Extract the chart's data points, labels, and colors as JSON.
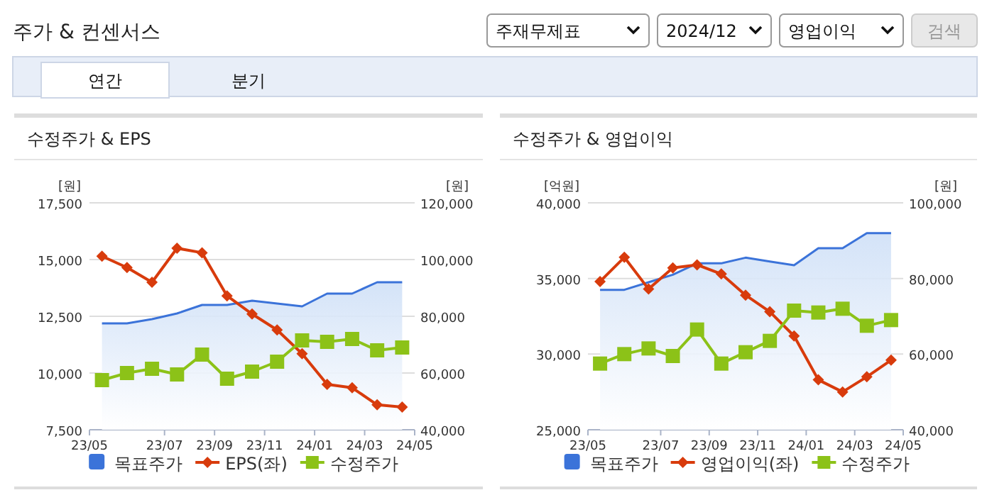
{
  "chart_data": [
    {
      "type": "line",
      "title": "수정주가 & EPS",
      "ylabel": "[원]",
      "y2label": "[원]",
      "annotations": [
        "주가 & 컨센서스",
        "주재무제표",
        "2024/12",
        "영업이익",
        "검색",
        "연간",
        "분기"
      ],
      "x": [
        "2023-05",
        "2023-06",
        "2023-07",
        "2023-08",
        "2023-09",
        "2023-10",
        "2023-11",
        "2023-12",
        "2024-01",
        "2024-02",
        "2024-03",
        "2024-04",
        "2024-05"
      ],
      "xlim": [
        "2023-04-16",
        "2024-05-16"
      ],
      "xticks": [
        {
          "value": "2023-04-16",
          "label": "23/05"
        },
        {
          "value": "2023-07-16",
          "label": "23/07"
        },
        {
          "value": "2023-09-16",
          "label": "23/09"
        },
        {
          "value": "2023-11-16",
          "label": "23/11"
        },
        {
          "value": "2024-01-16",
          "label": "24/01"
        },
        {
          "value": "2024-03-16",
          "label": "24/03"
        },
        {
          "value": "2024-05-16",
          "label": "24/05"
        }
      ],
      "ylim": [
        7500,
        17500
      ],
      "yticks": [
        {
          "value": 7500,
          "label": "7,500"
        },
        {
          "value": 10000,
          "label": "10,000"
        },
        {
          "value": 12500,
          "label": "12,500"
        },
        {
          "value": 15000,
          "label": "15,000"
        },
        {
          "value": 17500,
          "label": "17,500"
        }
      ],
      "y2lim": [
        40000,
        120000
      ],
      "y2ticks": [
        {
          "value": 40000,
          "label": "40,000"
        },
        {
          "value": 60000,
          "label": "60,000"
        },
        {
          "value": 80000,
          "label": "80,000"
        },
        {
          "value": 100000,
          "label": "100,000"
        },
        {
          "value": 120000,
          "label": "120,000"
        }
      ],
      "grid": "y",
      "legend": "bottom",
      "series": [
        {
          "name": "목표주가",
          "type": "area",
          "axis": "y2",
          "color": "#3b73d9",
          "values": [
            77500,
            77500,
            79000,
            81000,
            84000,
            84000,
            85500,
            84500,
            83500,
            88000,
            88000,
            92000,
            92000
          ]
        },
        {
          "name": "EPS(좌)",
          "type": "line",
          "marker": "diamond",
          "color": "#d83b0c",
          "values": [
            15150,
            14650,
            14000,
            15500,
            15300,
            13400,
            12600,
            11900,
            10850,
            9500,
            9350,
            8600,
            8500
          ]
        },
        {
          "name": "수정주가",
          "type": "line",
          "marker": "square",
          "axis": "y2",
          "color": "#8cc218",
          "values": [
            57500,
            60000,
            61500,
            59500,
            66500,
            58000,
            60500,
            64000,
            71500,
            71000,
            72000,
            68000,
            69000
          ]
        }
      ]
    },
    {
      "type": "line",
      "title": "수정주가 & 영업이익",
      "ylabel": "[억원]",
      "y2label": "[원]",
      "x": [
        "2023-05",
        "2023-06",
        "2023-07",
        "2023-08",
        "2023-09",
        "2023-10",
        "2023-11",
        "2023-12",
        "2024-01",
        "2024-02",
        "2024-03",
        "2024-04",
        "2024-05"
      ],
      "xlim": [
        "2023-04-16",
        "2024-05-16"
      ],
      "xticks": [
        {
          "value": "2023-04-16",
          "label": "23/05"
        },
        {
          "value": "2023-07-16",
          "label": "23/07"
        },
        {
          "value": "2023-09-16",
          "label": "23/09"
        },
        {
          "value": "2023-11-16",
          "label": "23/11"
        },
        {
          "value": "2024-01-16",
          "label": "24/01"
        },
        {
          "value": "2024-03-16",
          "label": "24/03"
        },
        {
          "value": "2024-05-16",
          "label": "24/05"
        }
      ],
      "ylim": [
        25000,
        40000
      ],
      "yticks": [
        {
          "value": 25000,
          "label": "25,000"
        },
        {
          "value": 30000,
          "label": "30,000"
        },
        {
          "value": 35000,
          "label": "35,000"
        },
        {
          "value": 40000,
          "label": "40,000"
        }
      ],
      "y2lim": [
        40000,
        100000
      ],
      "y2ticks": [
        {
          "value": 40000,
          "label": "40,000"
        },
        {
          "value": 60000,
          "label": "60,000"
        },
        {
          "value": 80000,
          "label": "80,000"
        },
        {
          "value": 100000,
          "label": "100,000"
        }
      ],
      "grid": "y",
      "legend": "bottom",
      "series": [
        {
          "name": "목표주가",
          "type": "area",
          "axis": "y2",
          "color": "#3b73d9",
          "values": [
            77000,
            77000,
            79000,
            81000,
            84000,
            84000,
            85500,
            84500,
            83500,
            88000,
            88000,
            92000,
            92000
          ]
        },
        {
          "name": "영업이익(좌)",
          "type": "line",
          "marker": "diamond",
          "color": "#d83b0c",
          "values": [
            34800,
            36400,
            34300,
            35700,
            35900,
            35300,
            33900,
            32800,
            31200,
            28300,
            27500,
            28500,
            29600
          ]
        },
        {
          "name": "수정주가",
          "type": "line",
          "marker": "square",
          "axis": "y2",
          "color": "#8cc218",
          "values": [
            57500,
            60000,
            61500,
            59500,
            66500,
            57500,
            60500,
            63500,
            71500,
            71000,
            72000,
            67500,
            69000
          ]
        }
      ]
    }
  ]
}
